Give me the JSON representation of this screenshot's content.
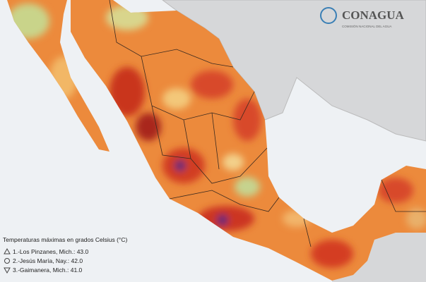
{
  "logo": {
    "name": "CONAGUA",
    "subtitle": "COMISIÓN NACIONAL DEL AGUA"
  },
  "legend": {
    "title": "Temperaturas máximas en grados Celsius (°C)",
    "items": [
      "1.-Los Pinzanes, Mich.: 43.0",
      "2.-Jesús María, Nay.: 42.0",
      "3.-Gaimanera, Mich.: 41.0"
    ]
  }
}
